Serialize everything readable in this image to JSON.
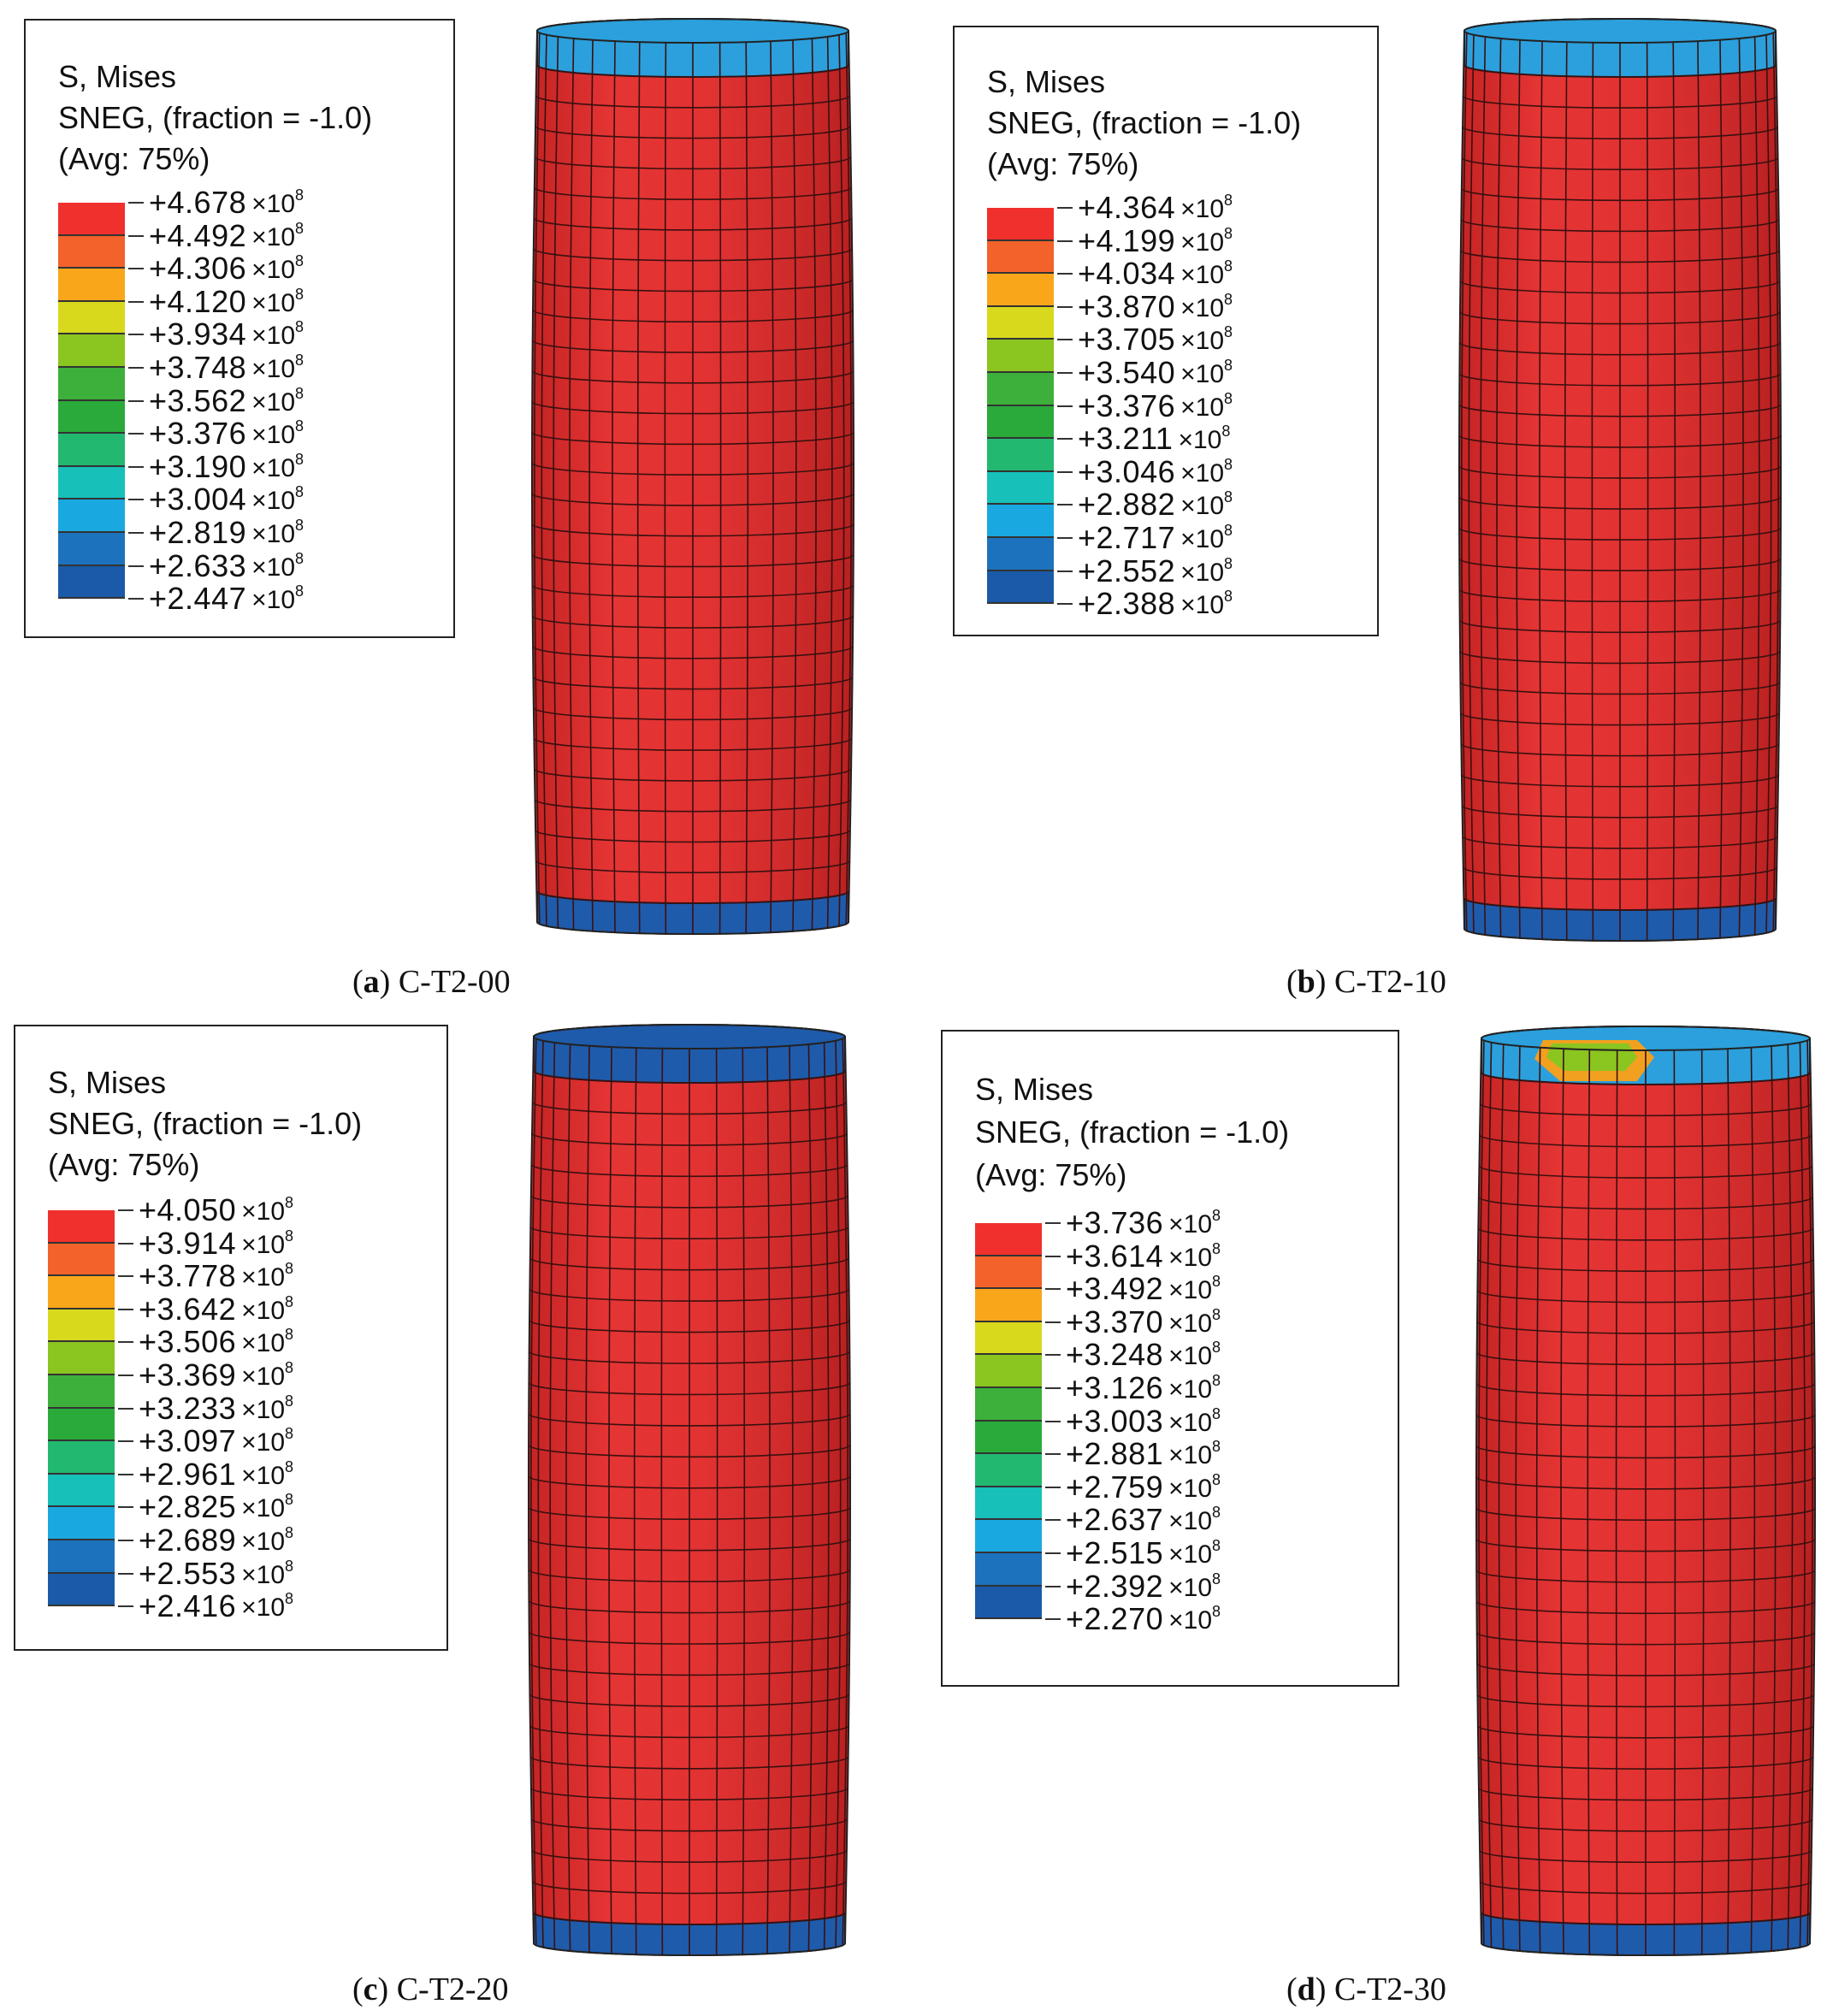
{
  "panels": [
    {
      "id": "a",
      "header": [
        "S, Mises",
        "SNEG, (fraction = -1.0)",
        "(Avg: 75%)"
      ],
      "values": [
        "+4.678",
        "+4.492",
        "+4.306",
        "+4.120",
        "+3.934",
        "+3.748",
        "+3.562",
        "+3.376",
        "+3.190",
        "+3.004",
        "+2.819",
        "+2.633",
        "+2.447"
      ],
      "multiplier": "×10",
      "exponent": "8",
      "caption_letter": "a",
      "caption_name": "C-T2-00"
    },
    {
      "id": "b",
      "header": [
        "S, Mises",
        "SNEG, (fraction = -1.0)",
        "(Avg: 75%)"
      ],
      "values": [
        "+4.364",
        "+4.199",
        "+4.034",
        "+3.870",
        "+3.705",
        "+3.540",
        "+3.376",
        "+3.211",
        "+3.046",
        "+2.882",
        "+2.717",
        "+2.552",
        "+2.388"
      ],
      "multiplier": "×10",
      "exponent": "8",
      "caption_letter": "b",
      "caption_name": "C-T2-10"
    },
    {
      "id": "c",
      "header": [
        "S, Mises",
        "SNEG, (fraction = -1.0)",
        "(Avg: 75%)"
      ],
      "values": [
        "+4.050",
        "+3.914",
        "+3.778",
        "+3.642",
        "+3.506",
        "+3.369",
        "+3.233",
        "+3.097",
        "+2.961",
        "+2.825",
        "+2.689",
        "+2.553",
        "+2.416"
      ],
      "multiplier": "×10",
      "exponent": "8",
      "caption_letter": "c",
      "caption_name": "C-T2-20"
    },
    {
      "id": "d",
      "header": [
        "S, Mises",
        "SNEG, (fraction = -1.0)",
        "(Avg: 75%)"
      ],
      "values": [
        "+3.736",
        "+3.614",
        "+3.492",
        "+3.370",
        "+3.248",
        "+3.126",
        "+3.003",
        "+2.881",
        "+2.759",
        "+2.637",
        "+2.515",
        "+2.392",
        "+2.270"
      ],
      "multiplier": "×10",
      "exponent": "8",
      "caption_letter": "d",
      "caption_name": "C-T2-30"
    }
  ],
  "colormap": [
    "#f0302c",
    "#f2622a",
    "#f9a61b",
    "#d8d91c",
    "#8bc520",
    "#3cb03a",
    "#2aaa3b",
    "#22b870",
    "#17c0b8",
    "#1aa8e0",
    "#1c72bc",
    "#1a5aa8"
  ],
  "colors": {
    "body_red": "#e33232",
    "mesh_line": "#3a1010",
    "end_blue": "#1f5bab",
    "end_light": "#2ba0dc"
  }
}
